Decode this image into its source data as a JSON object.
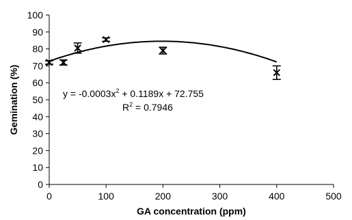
{
  "chart_data": {
    "type": "scatter",
    "xlabel": "GA concentration (ppm)",
    "ylabel": "Gemination (%)",
    "xlim": [
      0,
      500
    ],
    "ylim": [
      0,
      100
    ],
    "xticks": [
      0,
      100,
      200,
      300,
      400,
      500
    ],
    "yticks": [
      0,
      10,
      20,
      30,
      40,
      50,
      60,
      70,
      80,
      90,
      100
    ],
    "grid": false,
    "series": [
      {
        "points": [
          {
            "x": 0,
            "y": 72,
            "err": 1
          },
          {
            "x": 25,
            "y": 72,
            "err": 1.5
          },
          {
            "x": 50,
            "y": 80.5,
            "err": 3
          },
          {
            "x": 100,
            "y": 85.5,
            "err": 1
          },
          {
            "x": 200,
            "y": 79,
            "err": 2
          },
          {
            "x": 400,
            "y": 66,
            "err": 4
          }
        ]
      }
    ],
    "trendline": {
      "type": "polynomial",
      "coefficients": [
        -0.0003,
        0.1189,
        72.755
      ],
      "x_range": [
        0,
        400
      ]
    },
    "annotations": {
      "equation_main": "y = -0.0003x",
      "equation_sup": "2",
      "equation_rest": " + 0.1189x + 72.755",
      "r2_main": "R",
      "r2_sup": "2",
      "r2_rest": " = 0.7946"
    }
  }
}
